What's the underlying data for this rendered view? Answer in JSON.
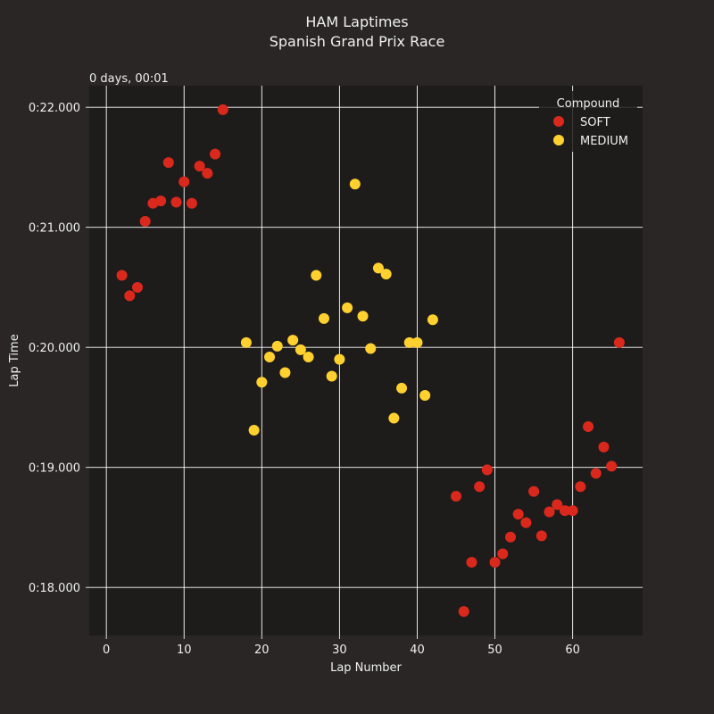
{
  "chart_data": {
    "type": "scatter",
    "title": "HAM Laptimes",
    "subtitle": "Spanish Grand Prix Race",
    "xlabel": "Lap Number",
    "ylabel": "Lap Time",
    "offset_label": "0 days, 00:01",
    "xlim": [
      -2.2,
      69
    ],
    "ylim": [
      17.6,
      22.18
    ],
    "xticks": [
      0,
      10,
      20,
      30,
      40,
      50,
      60
    ],
    "yticks": [
      18,
      19,
      20,
      21,
      22
    ],
    "ytick_labels": [
      "0:18.000",
      "0:19.000",
      "0:20.000",
      "0:21.000",
      "0:22.000"
    ],
    "grid": true,
    "legend_title": "Compound",
    "legend_placement": "top-right",
    "series": [
      {
        "name": "SOFT",
        "color": "#da291c",
        "points": [
          [
            2,
            20.6
          ],
          [
            3,
            20.43
          ],
          [
            4,
            20.5
          ],
          [
            5,
            21.05
          ],
          [
            6,
            21.2
          ],
          [
            7,
            21.22
          ],
          [
            8,
            21.54
          ],
          [
            9,
            21.21
          ],
          [
            10,
            21.38
          ],
          [
            11,
            21.2
          ],
          [
            12,
            21.51
          ],
          [
            13,
            21.45
          ],
          [
            14,
            21.61
          ],
          [
            15,
            21.98
          ],
          [
            45,
            18.76
          ],
          [
            46,
            17.8
          ],
          [
            47,
            18.21
          ],
          [
            48,
            18.84
          ],
          [
            49,
            18.98
          ],
          [
            50,
            18.21
          ],
          [
            51,
            18.28
          ],
          [
            52,
            18.42
          ],
          [
            53,
            18.61
          ],
          [
            54,
            18.54
          ],
          [
            55,
            18.8
          ],
          [
            56,
            18.43
          ],
          [
            57,
            18.63
          ],
          [
            58,
            18.69
          ],
          [
            59,
            18.64
          ],
          [
            60,
            18.64
          ],
          [
            61,
            18.84
          ],
          [
            62,
            19.34
          ],
          [
            63,
            18.95
          ],
          [
            64,
            19.17
          ],
          [
            65,
            19.01
          ],
          [
            66,
            20.04
          ]
        ]
      },
      {
        "name": "MEDIUM",
        "color": "#ffd12e",
        "points": [
          [
            18,
            20.04
          ],
          [
            19,
            19.31
          ],
          [
            20,
            19.71
          ],
          [
            21,
            19.92
          ],
          [
            22,
            20.01
          ],
          [
            23,
            19.79
          ],
          [
            24,
            20.06
          ],
          [
            25,
            19.98
          ],
          [
            26,
            19.92
          ],
          [
            27,
            20.6
          ],
          [
            28,
            20.24
          ],
          [
            29,
            19.76
          ],
          [
            30,
            19.9
          ],
          [
            31,
            20.33
          ],
          [
            32,
            21.36
          ],
          [
            33,
            20.26
          ],
          [
            34,
            19.99
          ],
          [
            35,
            20.66
          ],
          [
            36,
            20.61
          ],
          [
            37,
            19.41
          ],
          [
            38,
            19.66
          ],
          [
            39,
            20.04
          ],
          [
            40,
            20.04
          ],
          [
            41,
            19.6
          ],
          [
            42,
            20.23
          ]
        ]
      }
    ]
  },
  "colors": {
    "page_background": "#292625",
    "plot_background": "#1e1c1b",
    "grid": "#ffffff",
    "text": "#f0f0f0"
  }
}
